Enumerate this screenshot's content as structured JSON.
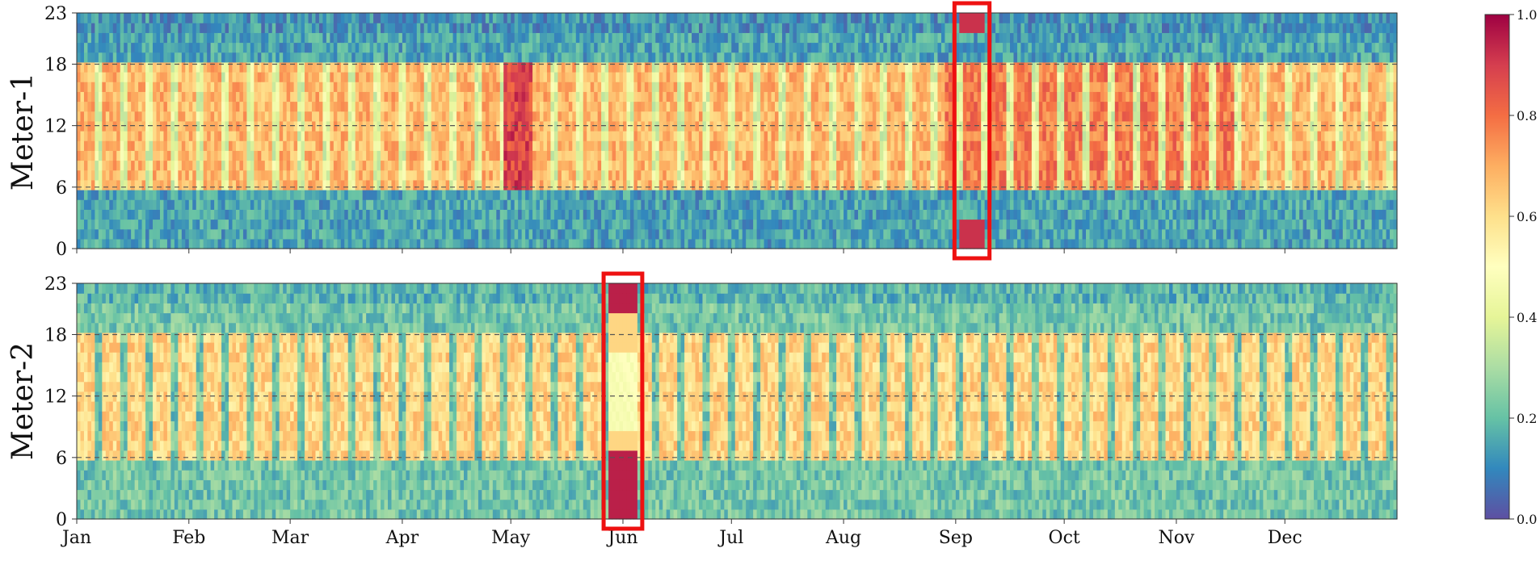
{
  "chart_data": {
    "type": "heatmap",
    "colormap": "Spectral_r",
    "x_axis": {
      "label": "",
      "tick_labels": [
        "Jan",
        "Feb",
        "Mar",
        "Apr",
        "May",
        "Jun",
        "Jul",
        "Aug",
        "Sep",
        "Oct",
        "Nov",
        "Dec"
      ]
    },
    "y_axis": {
      "tick_labels": [
        "0",
        "6",
        "12",
        "18",
        "23"
      ],
      "range": [
        0,
        23
      ],
      "reference_lines_at": [
        6,
        12,
        18
      ]
    },
    "colorbar": {
      "range": [
        0.0,
        1.0
      ],
      "tick_labels": [
        "0.0",
        "0.2",
        "0.4",
        "0.6",
        "0.8",
        "1.0"
      ]
    },
    "panels": [
      {
        "ylabel": "Meter-1",
        "highlight": {
          "start_day": 244,
          "end_day": 250,
          "description": "anomaly box"
        },
        "day_hours": [
          6,
          18
        ],
        "weekday_value": 0.68,
        "weekend_value": 0.4,
        "night_value": 0.15
      },
      {
        "ylabel": "Meter-2",
        "highlight": {
          "start_day": 147,
          "end_day": 154,
          "description": "anomaly box"
        },
        "day_hours": [
          6,
          18
        ],
        "weekday_value": 0.62,
        "weekend_value": 0.22,
        "night_value": 0.22
      }
    ]
  }
}
